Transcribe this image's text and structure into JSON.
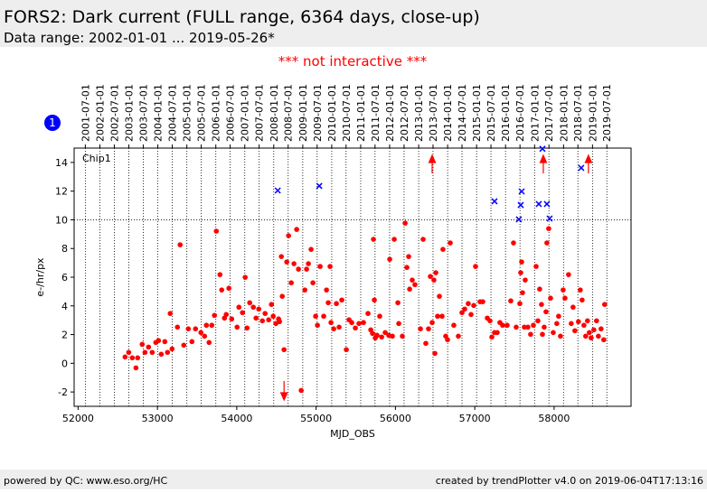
{
  "chart_data": {
    "type": "scatter",
    "title": "FORS2: Dark current (FULL range, 6364 days, close-up)",
    "subtitle": "Data range: 2002-01-01 ... 2019-05-26*",
    "annotation": "*** not interactive ***",
    "badge": "1",
    "panel_label": "Chip1",
    "xlabel": "MJD_OBS",
    "ylabel": "e-/hr/px",
    "xlim": [
      51950,
      58970
    ],
    "ylim": [
      -3,
      15
    ],
    "xticks": [
      52000,
      53000,
      54000,
      55000,
      56000,
      57000,
      58000
    ],
    "yticks": [
      -2,
      0,
      2,
      4,
      6,
      8,
      10,
      12,
      14
    ],
    "reference_line": 10,
    "x2ticks": [
      {
        "value": 52091,
        "label": "2001-07-01"
      },
      {
        "value": 52275,
        "label": "2002-01-01"
      },
      {
        "value": 52456,
        "label": "2002-07-01"
      },
      {
        "value": 52640,
        "label": "2003-01-01"
      },
      {
        "value": 52821,
        "label": "2003-07-01"
      },
      {
        "value": 53005,
        "label": "2004-01-01"
      },
      {
        "value": 53187,
        "label": "2004-07-01"
      },
      {
        "value": 53371,
        "label": "2005-01-01"
      },
      {
        "value": 53552,
        "label": "2005-07-01"
      },
      {
        "value": 53736,
        "label": "2006-01-01"
      },
      {
        "value": 53917,
        "label": "2006-07-01"
      },
      {
        "value": 54101,
        "label": "2007-01-01"
      },
      {
        "value": 54282,
        "label": "2007-07-01"
      },
      {
        "value": 54466,
        "label": "2008-01-01"
      },
      {
        "value": 54648,
        "label": "2008-07-01"
      },
      {
        "value": 54832,
        "label": "2009-01-01"
      },
      {
        "value": 55013,
        "label": "2009-07-01"
      },
      {
        "value": 55197,
        "label": "2010-01-01"
      },
      {
        "value": 55378,
        "label": "2010-07-01"
      },
      {
        "value": 55562,
        "label": "2011-01-01"
      },
      {
        "value": 55743,
        "label": "2011-07-01"
      },
      {
        "value": 55927,
        "label": "2012-01-01"
      },
      {
        "value": 56109,
        "label": "2012-07-01"
      },
      {
        "value": 56293,
        "label": "2013-01-01"
      },
      {
        "value": 56474,
        "label": "2013-07-01"
      },
      {
        "value": 56658,
        "label": "2014-01-01"
      },
      {
        "value": 56839,
        "label": "2014-07-01"
      },
      {
        "value": 57023,
        "label": "2015-01-01"
      },
      {
        "value": 57204,
        "label": "2015-07-01"
      },
      {
        "value": 57388,
        "label": "2016-01-01"
      },
      {
        "value": 57570,
        "label": "2016-07-01"
      },
      {
        "value": 57754,
        "label": "2017-01-01"
      },
      {
        "value": 57935,
        "label": "2017-07-01"
      },
      {
        "value": 58119,
        "label": "2018-01-01"
      },
      {
        "value": 58300,
        "label": "2018-07-01"
      },
      {
        "value": 58484,
        "label": "2019-01-01"
      },
      {
        "value": 58665,
        "label": "2019-07-01"
      }
    ],
    "series": [
      {
        "color": "#ff0000",
        "marker": "dot",
        "x": [
          52592,
          52638,
          52683,
          52729,
          52751,
          52808,
          52843,
          52888,
          52934,
          52979,
          53013,
          53048,
          53093,
          53127,
          53161,
          53184,
          53252,
          53286,
          53332,
          53389,
          53435,
          53480,
          53548,
          53594,
          53617,
          53651,
          53685,
          53719,
          53742,
          53788,
          53810,
          53845,
          53867,
          53901,
          53936,
          54004,
          54027,
          54072,
          54106,
          54129,
          54163,
          54209,
          54243,
          54277,
          54323,
          54357,
          54402,
          54437,
          54459,
          54493,
          54527,
          54539,
          54562,
          54573,
          54596,
          54630,
          54653,
          54687,
          54721,
          54755,
          54778,
          54812,
          54858,
          54880,
          54903,
          54937,
          54960,
          54994,
          55017,
          55051,
          55096,
          55131,
          55153,
          55176,
          55188,
          55222,
          55256,
          55290,
          55324,
          55381,
          55415,
          55449,
          55495,
          55540,
          55597,
          55654,
          55689,
          55711,
          55723,
          55734,
          55746,
          55768,
          55802,
          55826,
          55871,
          55916,
          55928,
          55962,
          55985,
          56031,
          56042,
          56087,
          56122,
          56144,
          56167,
          56179,
          56212,
          56246,
          56315,
          56349,
          56383,
          56417,
          56440,
          56463,
          56485,
          56497,
          56509,
          56531,
          56554,
          56588,
          56599,
          56634,
          56657,
          56691,
          56736,
          56793,
          56839,
          56873,
          56918,
          56953,
          56987,
          57010,
          57067,
          57101,
          57158,
          57192,
          57215,
          57249,
          57283,
          57317,
          57351,
          57408,
          57454,
          57488,
          57522,
          57568,
          57579,
          57591,
          57602,
          57625,
          57636,
          57670,
          57704,
          57739,
          57773,
          57796,
          57818,
          57841,
          57853,
          57875,
          57898,
          57909,
          57932,
          57955,
          57989,
          58034,
          58057,
          58080,
          58114,
          58137,
          58182,
          58216,
          58239,
          58262,
          58307,
          58330,
          58353,
          58376,
          58398,
          58421,
          58444,
          58467,
          58501,
          58535,
          58558,
          58592,
          58626,
          58637
        ],
        "values": [
          0.44,
          0.76,
          0.38,
          -0.32,
          0.38,
          1.32,
          0.76,
          1.13,
          0.76,
          1.45,
          1.58,
          0.63,
          1.51,
          0.76,
          3.47,
          1.0,
          2.52,
          8.26,
          1.26,
          2.4,
          1.51,
          2.4,
          2.14,
          1.89,
          2.65,
          1.45,
          2.65,
          3.34,
          9.21,
          6.18,
          5.11,
          3.15,
          3.4,
          5.23,
          3.09,
          2.52,
          3.91,
          3.53,
          5.99,
          2.46,
          4.22,
          3.91,
          3.15,
          3.78,
          2.96,
          3.47,
          3.03,
          4.1,
          3.28,
          2.77,
          3.09,
          2.9,
          7.44,
          4.67,
          0.95,
          7.06,
          8.89,
          5.61,
          6.94,
          9.33,
          6.56,
          -1.89,
          5.11,
          6.56,
          6.94,
          7.94,
          5.61,
          3.28,
          2.65,
          6.75,
          3.28,
          5.11,
          4.22,
          6.75,
          2.84,
          2.4,
          4.16,
          2.52,
          4.41,
          0.95,
          3.03,
          2.84,
          2.46,
          2.77,
          2.84,
          3.47,
          2.33,
          2.08,
          8.64,
          4.41,
          1.77,
          1.95,
          3.28,
          1.83,
          2.14,
          1.95,
          7.25,
          1.89,
          8.64,
          4.22,
          2.77,
          1.89,
          9.77,
          6.68,
          7.44,
          5.17,
          5.8,
          5.48,
          2.4,
          8.64,
          1.39,
          2.4,
          6.05,
          2.84,
          5.8,
          0.69,
          6.31,
          3.28,
          4.67,
          3.28,
          7.94,
          1.89,
          1.64,
          8.39,
          2.65,
          1.89,
          3.53,
          3.78,
          4.16,
          3.4,
          4.03,
          6.75,
          4.29,
          4.29,
          3.15,
          2.96,
          1.83,
          2.14,
          2.14,
          2.84,
          2.65,
          2.65,
          4.35,
          8.39,
          2.52,
          4.16,
          6.31,
          7.06,
          4.92,
          2.52,
          5.8,
          2.52,
          2.02,
          2.65,
          6.75,
          2.96,
          5.17,
          4.1,
          2.02,
          2.52,
          3.59,
          8.39,
          9.39,
          4.54,
          2.14,
          2.77,
          3.28,
          1.89,
          5.11,
          4.54,
          6.18,
          2.77,
          3.91,
          2.27,
          2.9,
          5.11,
          4.41,
          2.65,
          1.89,
          2.96,
          2.14,
          1.77,
          2.33,
          2.96,
          1.89,
          2.4,
          1.64,
          4.1
        ]
      },
      {
        "color": "#0000ff",
        "marker": "x",
        "x": [
          54516,
          55040,
          57249,
          57556,
          57579,
          57591,
          57807,
          57853,
          57909,
          57943,
          58342
        ],
        "values": [
          12.04,
          12.36,
          11.29,
          10.03,
          11.03,
          11.98,
          11.1,
          14.95,
          11.1,
          10.09,
          13.62
        ]
      }
    ],
    "arrows": {
      "color": "#ff0000",
      "x": [
        54596,
        56463,
        57864,
        58433
      ],
      "direction": [
        "down",
        "up",
        "up",
        "up"
      ]
    }
  },
  "footer": {
    "left": "powered by QC: www.eso.org/HC",
    "right": "created by trendPlotter v4.0 on 2019-06-04T17:13:16"
  }
}
